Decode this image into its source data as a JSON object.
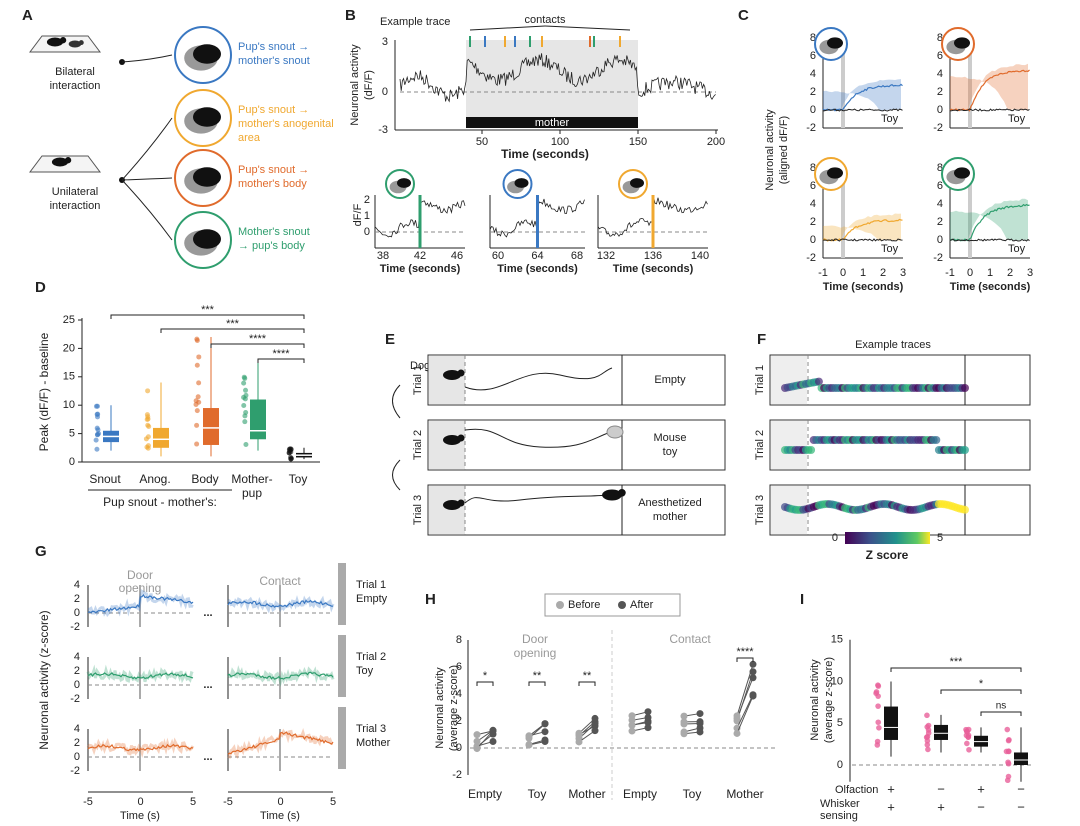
{
  "A": {
    "letter": "A",
    "bilateral": [
      "Bilateral",
      "interaction"
    ],
    "unilateral": [
      "Unilateral",
      "interaction"
    ],
    "targets": [
      [
        "Pup's snout →",
        "mother's snout"
      ],
      [
        "Pup's snout →",
        "mother's anogenital",
        "area"
      ],
      [
        "Pup's snout →",
        "mother's body"
      ],
      [
        "Mother's snout",
        "→ pup's body"
      ]
    ]
  },
  "B": {
    "letter": "B",
    "title": "Example trace",
    "contacts": "contacts",
    "ylabel": [
      "Neuronal activity",
      "(dF/F)"
    ],
    "yticks": [
      "3",
      "0",
      "-3"
    ],
    "xticks": [
      "50",
      "100",
      "150",
      "200"
    ],
    "xlabel": "Time (seconds)",
    "bar_label": "mother",
    "inset_ylabel": "dF/F",
    "inset_yticks": [
      "2",
      "1",
      "0"
    ],
    "insets": [
      {
        "xticks": [
          "38",
          "42",
          "46"
        ],
        "xlabel": "Time (seconds)"
      },
      {
        "xticks": [
          "60",
          "64",
          "68"
        ],
        "xlabel": "Time (seconds)"
      },
      {
        "xticks": [
          "132",
          "136",
          "140"
        ],
        "xlabel": "Time (seconds)"
      }
    ]
  },
  "C": {
    "letter": "C",
    "ylabel": [
      "Neuronal activity",
      "(aligned dF/F)"
    ],
    "yticks": [
      "8",
      "6",
      "4",
      "2",
      "0",
      "-2"
    ],
    "xticks": [
      "-1",
      "0",
      "1",
      "2",
      "3"
    ],
    "xlabel": "Time (seconds)",
    "control": "Toy"
  },
  "D": {
    "letter": "D",
    "ylabel": "Peak (dF/F) - baseline",
    "yticks": [
      "25",
      "20",
      "15",
      "10",
      "5",
      "0"
    ],
    "categories": [
      [
        "Snout"
      ],
      [
        "Anog."
      ],
      [
        "Body"
      ],
      [
        "Mother-",
        "pup"
      ],
      [
        "Toy"
      ]
    ],
    "group": "Pup snout - mother's:",
    "stars": [
      "***",
      "***",
      "****",
      "****"
    ]
  },
  "E": {
    "letter": "E",
    "door": "Door",
    "trials": [
      "Trial 1",
      "Trial 2",
      "Trial 3"
    ],
    "conditions": [
      [
        "Empty"
      ],
      [
        "Mouse",
        "toy"
      ],
      [
        "Anesthetized",
        "mother"
      ]
    ]
  },
  "F": {
    "letter": "F",
    "title": "Example traces",
    "trials": [
      "Trial 1",
      "Trial 2",
      "Trial 3"
    ],
    "colorbar": {
      "min": "0",
      "max": "5",
      "label": "Z score"
    }
  },
  "G": {
    "letter": "G",
    "ylabel": "Neuronal activity (z-score)",
    "yticks": [
      "4",
      "2",
      "0",
      "-2"
    ],
    "xticks": [
      "-5",
      "0",
      "5"
    ],
    "xlabel": "Time (s)",
    "events": [
      [
        "Door",
        "opening"
      ],
      [
        "Contact"
      ]
    ],
    "rows": [
      [
        "Trial 1",
        "Empty"
      ],
      [
        "Trial 2",
        "Toy"
      ],
      [
        "Trial 3",
        "Mother"
      ]
    ],
    "ellipsis": "..."
  },
  "H": {
    "letter": "H",
    "legend": [
      "Before",
      "After"
    ],
    "ylabel": [
      "Neuronal activity",
      "(average z-score)"
    ],
    "yticks": [
      "8",
      "6",
      "4",
      "2",
      "0",
      "-2"
    ],
    "events": [
      [
        "Door",
        "opening"
      ],
      [
        "Contact"
      ]
    ],
    "categories": [
      "Empty",
      "Toy",
      "Mother"
    ],
    "stars": [
      "*",
      "**",
      "**",
      "****"
    ]
  },
  "I": {
    "letter": "I",
    "ylabel": [
      "Neuronal activity",
      "(average z-score)"
    ],
    "yticks": [
      "15",
      "10",
      "5",
      "0"
    ],
    "stars": [
      "***",
      "*",
      "ns"
    ],
    "factors": [
      {
        "name": [
          "Olfaction"
        ],
        "signs": [
          "+",
          "−",
          "+",
          "−"
        ]
      },
      {
        "name": [
          "Whisker",
          "sensing"
        ],
        "signs": [
          "+",
          "+",
          "−",
          "−"
        ]
      }
    ]
  }
}
